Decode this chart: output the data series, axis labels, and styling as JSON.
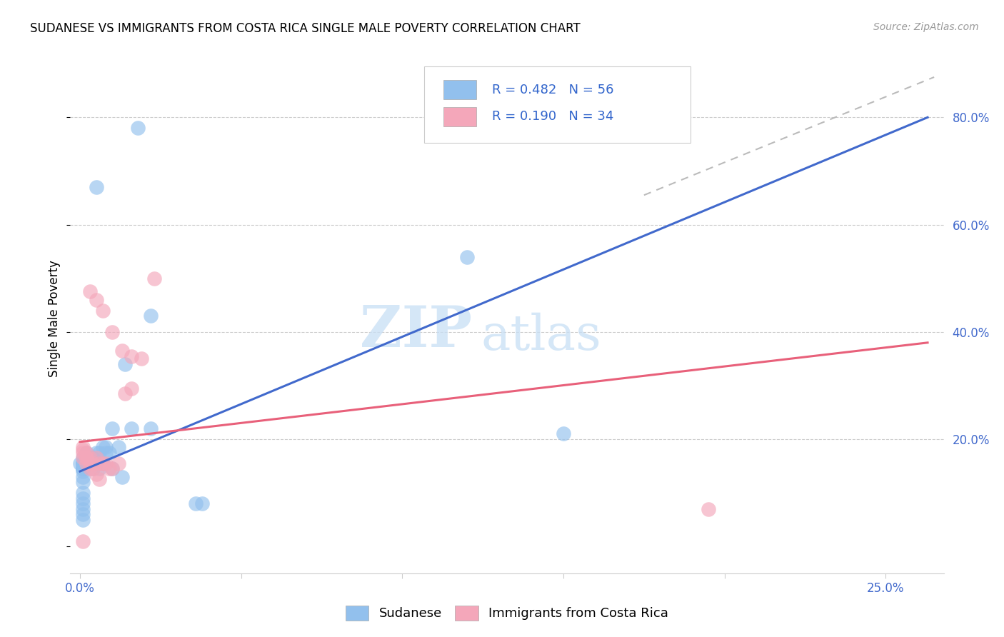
{
  "title": "SUDANESE VS IMMIGRANTS FROM COSTA RICA SINGLE MALE POVERTY CORRELATION CHART",
  "source": "Source: ZipAtlas.com",
  "ylabel_label": "Single Male Poverty",
  "x_min": -0.003,
  "x_max": 0.268,
  "y_min": -0.05,
  "y_max": 0.9,
  "x_ticks": [
    0.0,
    0.05,
    0.1,
    0.15,
    0.2,
    0.25
  ],
  "x_tick_labels": [
    "0.0%",
    "",
    "",
    "",
    "",
    "25.0%"
  ],
  "y_ticks_right": [
    0.0,
    0.2,
    0.4,
    0.6,
    0.8
  ],
  "y_tick_labels_right": [
    "",
    "20.0%",
    "40.0%",
    "60.0%",
    "80.0%"
  ],
  "blue_color": "#92C0ED",
  "pink_color": "#F4A7BA",
  "blue_line_color": "#4169CC",
  "pink_line_color": "#E8607A",
  "diagonal_line_color": "#BBBBBB",
  "R_blue": 0.482,
  "N_blue": 56,
  "R_pink": 0.19,
  "N_pink": 34,
  "legend_label_blue": "Sudanese",
  "legend_label_pink": "Immigrants from Costa Rica",
  "watermark_zip": "ZIP",
  "watermark_atlas": "atlas",
  "blue_scatter_x": [
    0.004,
    0.005,
    0.018,
    0.022,
    0.022,
    0.007,
    0.01,
    0.013,
    0.0,
    0.001,
    0.002,
    0.003,
    0.004,
    0.001,
    0.002,
    0.003,
    0.004,
    0.005,
    0.006,
    0.007,
    0.008,
    0.002,
    0.003,
    0.004,
    0.005,
    0.006,
    0.007,
    0.008,
    0.009,
    0.01,
    0.012,
    0.014,
    0.016,
    0.001,
    0.002,
    0.001,
    0.002,
    0.001,
    0.001,
    0.001,
    0.001,
    0.001,
    0.001,
    0.001,
    0.001,
    0.001,
    0.001,
    0.001,
    0.001,
    0.001,
    0.001,
    0.001,
    0.036,
    0.038,
    0.12,
    0.15
  ],
  "blue_scatter_y": [
    0.165,
    0.67,
    0.78,
    0.43,
    0.22,
    0.155,
    0.145,
    0.13,
    0.155,
    0.165,
    0.155,
    0.155,
    0.145,
    0.145,
    0.165,
    0.165,
    0.155,
    0.155,
    0.145,
    0.155,
    0.185,
    0.175,
    0.165,
    0.165,
    0.175,
    0.175,
    0.185,
    0.175,
    0.175,
    0.22,
    0.185,
    0.34,
    0.22,
    0.155,
    0.155,
    0.145,
    0.155,
    0.155,
    0.155,
    0.155,
    0.145,
    0.145,
    0.145,
    0.14,
    0.13,
    0.12,
    0.1,
    0.09,
    0.08,
    0.07,
    0.06,
    0.05,
    0.08,
    0.08,
    0.54,
    0.21
  ],
  "pink_scatter_x": [
    0.003,
    0.005,
    0.007,
    0.01,
    0.013,
    0.016,
    0.019,
    0.023,
    0.001,
    0.002,
    0.003,
    0.004,
    0.005,
    0.006,
    0.007,
    0.008,
    0.009,
    0.01,
    0.012,
    0.014,
    0.016,
    0.001,
    0.002,
    0.001,
    0.002,
    0.003,
    0.004,
    0.005,
    0.006,
    0.001,
    0.002,
    0.003,
    0.195,
    0.001
  ],
  "pink_scatter_y": [
    0.475,
    0.46,
    0.44,
    0.4,
    0.365,
    0.355,
    0.35,
    0.5,
    0.18,
    0.165,
    0.165,
    0.155,
    0.165,
    0.155,
    0.155,
    0.155,
    0.145,
    0.145,
    0.155,
    0.285,
    0.295,
    0.185,
    0.175,
    0.175,
    0.165,
    0.155,
    0.145,
    0.135,
    0.125,
    0.165,
    0.155,
    0.145,
    0.07,
    0.01
  ],
  "blue_line_x": [
    0.0,
    0.263
  ],
  "blue_line_y": [
    0.14,
    0.8
  ],
  "pink_line_x": [
    0.0,
    0.263
  ],
  "pink_line_y": [
    0.195,
    0.38
  ],
  "diag_line_x": [
    0.175,
    0.265
  ],
  "diag_line_y": [
    0.655,
    0.875
  ]
}
